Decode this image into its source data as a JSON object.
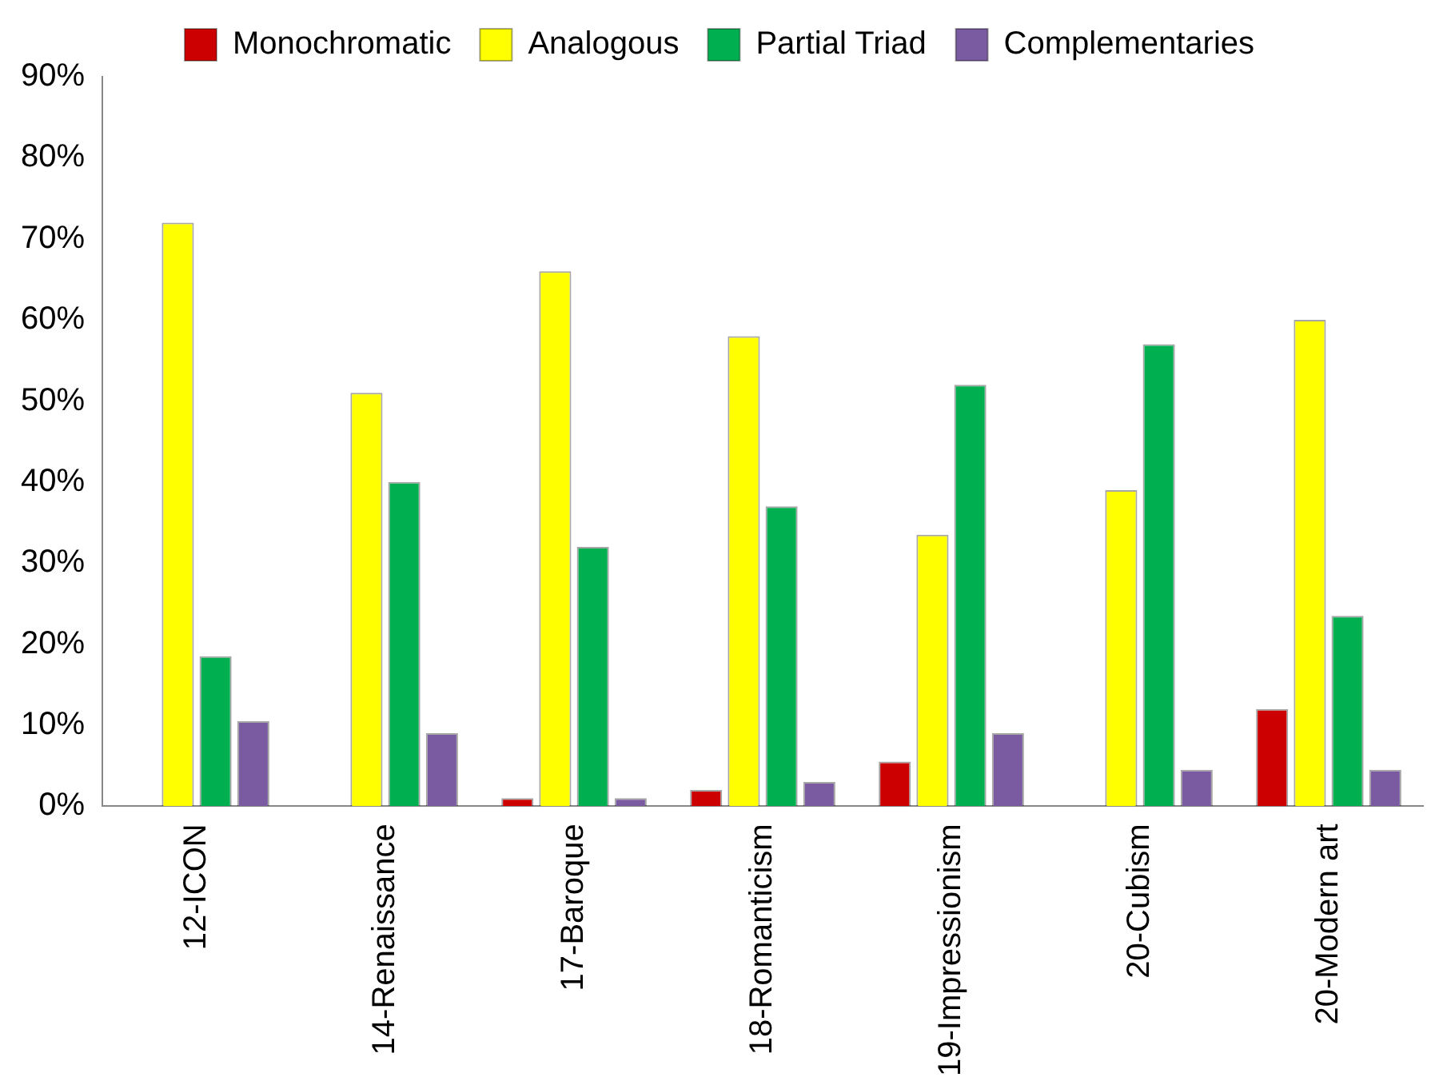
{
  "chart_data": {
    "type": "bar",
    "categories": [
      "12-ICON",
      "14-Renaissance",
      "17-Baroque",
      "18-Romanticism",
      "19-Impressionism",
      "20-Cubism",
      "20-Modern art"
    ],
    "series": [
      {
        "name": "Monochromatic",
        "color": "#cc0000",
        "values": [
          0,
          0,
          1,
          2,
          5.5,
          0,
          12
        ]
      },
      {
        "name": "Analogous",
        "color": "#ffff00",
        "values": [
          72,
          51,
          66,
          58,
          33.5,
          39,
          60
        ]
      },
      {
        "name": "Partial Triad",
        "color": "#00b050",
        "values": [
          18.5,
          40,
          32,
          37,
          52,
          57,
          23.5
        ]
      },
      {
        "name": "Complementaries",
        "color": "#7a5aa0",
        "values": [
          10.5,
          9,
          1,
          3,
          9,
          4.5,
          4.5
        ]
      }
    ],
    "ylim": [
      0,
      90
    ],
    "yticks": [
      {
        "value": 0,
        "label": "0%"
      },
      {
        "value": 10,
        "label": "10%"
      },
      {
        "value": 20,
        "label": "20%"
      },
      {
        "value": 30,
        "label": "30%"
      },
      {
        "value": 40,
        "label": "40%"
      },
      {
        "value": 50,
        "label": "50%"
      },
      {
        "value": 60,
        "label": "60%"
      },
      {
        "value": 70,
        "label": "70%"
      },
      {
        "value": 80,
        "label": "80%"
      },
      {
        "value": 90,
        "label": "90%"
      }
    ],
    "grid": false,
    "legend": "top"
  }
}
